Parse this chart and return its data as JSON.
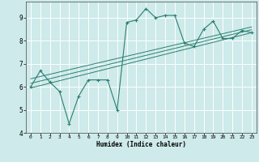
{
  "xlabel": "Humidex (Indice chaleur)",
  "ylabel": "",
  "bg_color": "#ceeaea",
  "grid_color": "#ffffff",
  "line_color": "#2a7f6f",
  "xlim": [
    -0.5,
    23.5
  ],
  "ylim": [
    4.0,
    9.7
  ],
  "yticks": [
    4,
    5,
    6,
    7,
    8,
    9
  ],
  "xticks": [
    0,
    1,
    2,
    3,
    4,
    5,
    6,
    7,
    8,
    9,
    10,
    11,
    12,
    13,
    14,
    15,
    16,
    17,
    18,
    19,
    20,
    21,
    22,
    23
  ],
  "main_x": [
    0,
    1,
    2,
    3,
    4,
    5,
    6,
    7,
    8,
    9,
    10,
    11,
    12,
    13,
    14,
    15,
    16,
    17,
    18,
    19,
    20,
    21,
    22,
    23
  ],
  "main_y": [
    6.0,
    6.7,
    6.2,
    5.8,
    4.4,
    5.6,
    6.3,
    6.3,
    6.3,
    5.0,
    8.8,
    8.9,
    9.4,
    9.0,
    9.1,
    9.1,
    7.9,
    7.75,
    8.5,
    8.85,
    8.1,
    8.1,
    8.45,
    8.35
  ],
  "trend_lines": [
    {
      "x": [
        0,
        23
      ],
      "y": [
        5.95,
        8.35
      ]
    },
    {
      "x": [
        0,
        23
      ],
      "y": [
        6.35,
        8.6
      ]
    },
    {
      "x": [
        0,
        23
      ],
      "y": [
        6.15,
        8.48
      ]
    }
  ]
}
